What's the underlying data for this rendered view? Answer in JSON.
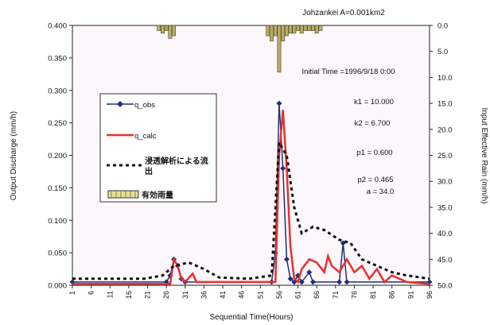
{
  "chart_data": {
    "type": "line",
    "title": "Johzankei   A=0.001km2",
    "xlabel": "Sequential Time(Hours)",
    "ylabel_left": "Output Discharge (mm/h)",
    "ylabel_right": "Input Effective Rain (mm/h)",
    "x_ticks": [
      "1",
      "6",
      "11",
      "16",
      "21",
      "26",
      "31",
      "36",
      "41",
      "46",
      "51",
      "56",
      "61",
      "66",
      "71",
      "76",
      "81",
      "86",
      "91",
      "96"
    ],
    "y_left_ticks": [
      "0.000",
      "0.050",
      "0.100",
      "0.150",
      "0.200",
      "0.250",
      "0.300",
      "0.350",
      "0.400"
    ],
    "y_right_ticks": [
      "0.0",
      "5.0",
      "10.0",
      "15.0",
      "20.0",
      "25.0",
      "30.0",
      "35.0",
      "40.0",
      "45.0",
      "50.0"
    ],
    "ylim_left": [
      0,
      0.4
    ],
    "ylim_right_reversed": [
      50,
      0
    ],
    "xlim": [
      1,
      96
    ],
    "grid": false,
    "legend_items": [
      {
        "label": "q_obs",
        "style": "line-diamond",
        "color": "#1f2f7a"
      },
      {
        "label": "q_calc",
        "style": "line",
        "color": "#e8302a"
      },
      {
        "label": "浸透解析による流出",
        "style": "dotted",
        "color": "#111111"
      },
      {
        "label": "有効雨量",
        "style": "bar",
        "color": "#c8c080"
      }
    ],
    "annotations": [
      "Initial Time =1996/9/18 0:00",
      "k1 = 10.000",
      "k2 = 6.700",
      "p1 = 0.600",
      "p2 = 0.465",
      "a = 34.0"
    ],
    "series": [
      {
        "name": "q_obs",
        "color": "#1f2f7a",
        "points": [
          [
            1,
            0.005
          ],
          [
            26,
            0.005
          ],
          [
            27,
            0.015
          ],
          [
            28,
            0.04
          ],
          [
            29,
            0.03
          ],
          [
            30,
            0.01
          ],
          [
            31,
            0.005
          ],
          [
            54,
            0.005
          ],
          [
            55,
            0.05
          ],
          [
            56,
            0.28
          ],
          [
            57,
            0.18
          ],
          [
            58,
            0.04
          ],
          [
            59,
            0.01
          ],
          [
            60,
            0.005
          ],
          [
            61,
            0.015
          ],
          [
            62,
            0.005
          ],
          [
            64,
            0.02
          ],
          [
            65,
            0.005
          ],
          [
            72,
            0.005
          ],
          [
            73,
            0.065
          ],
          [
            74,
            0.005
          ],
          [
            96,
            0.005
          ]
        ]
      },
      {
        "name": "q_calc",
        "color": "#e8302a",
        "points": [
          [
            1,
            0.002
          ],
          [
            27,
            0.002
          ],
          [
            28,
            0.04
          ],
          [
            29,
            0.03
          ],
          [
            30,
            0.01
          ],
          [
            31,
            0.005
          ],
          [
            33,
            0.018
          ],
          [
            34,
            0.005
          ],
          [
            55,
            0.005
          ],
          [
            56,
            0.2
          ],
          [
            57,
            0.27
          ],
          [
            58,
            0.18
          ],
          [
            59,
            0.06
          ],
          [
            60,
            0.01
          ],
          [
            61,
            0.005
          ],
          [
            62,
            0.025
          ],
          [
            64,
            0.04
          ],
          [
            66,
            0.035
          ],
          [
            68,
            0.02
          ],
          [
            69,
            0.045
          ],
          [
            70,
            0.03
          ],
          [
            72,
            0.02
          ],
          [
            74,
            0.04
          ],
          [
            76,
            0.02
          ],
          [
            78,
            0.03
          ],
          [
            80,
            0.01
          ],
          [
            82,
            0.025
          ],
          [
            84,
            0.005
          ],
          [
            86,
            0.015
          ],
          [
            90,
            0.005
          ],
          [
            96,
            0.002
          ]
        ]
      },
      {
        "name": "浸透解析による流出",
        "color": "#111111",
        "points": [
          [
            1,
            0.01
          ],
          [
            20,
            0.01
          ],
          [
            25,
            0.015
          ],
          [
            28,
            0.03
          ],
          [
            32,
            0.035
          ],
          [
            36,
            0.025
          ],
          [
            40,
            0.012
          ],
          [
            48,
            0.01
          ],
          [
            54,
            0.015
          ],
          [
            56,
            0.22
          ],
          [
            58,
            0.2
          ],
          [
            60,
            0.12
          ],
          [
            62,
            0.08
          ],
          [
            65,
            0.09
          ],
          [
            68,
            0.085
          ],
          [
            72,
            0.07
          ],
          [
            75,
            0.065
          ],
          [
            78,
            0.04
          ],
          [
            82,
            0.03
          ],
          [
            86,
            0.02
          ],
          [
            90,
            0.015
          ],
          [
            96,
            0.01
          ]
        ]
      }
    ],
    "rain": {
      "name": "有効雨量",
      "color": "#b8ad6a",
      "x": [
        24,
        25,
        26,
        27,
        28,
        53,
        54,
        55,
        56,
        57,
        58,
        59,
        60,
        61,
        62,
        63,
        64,
        65,
        66,
        67
      ],
      "values": [
        1.0,
        1.5,
        1.0,
        2.5,
        2.0,
        2.0,
        3.0,
        2.0,
        9.0,
        3.0,
        2.0,
        1.5,
        1.5,
        1.0,
        1.5,
        1.0,
        1.0,
        1.0,
        1.5,
        1.0
      ]
    }
  }
}
